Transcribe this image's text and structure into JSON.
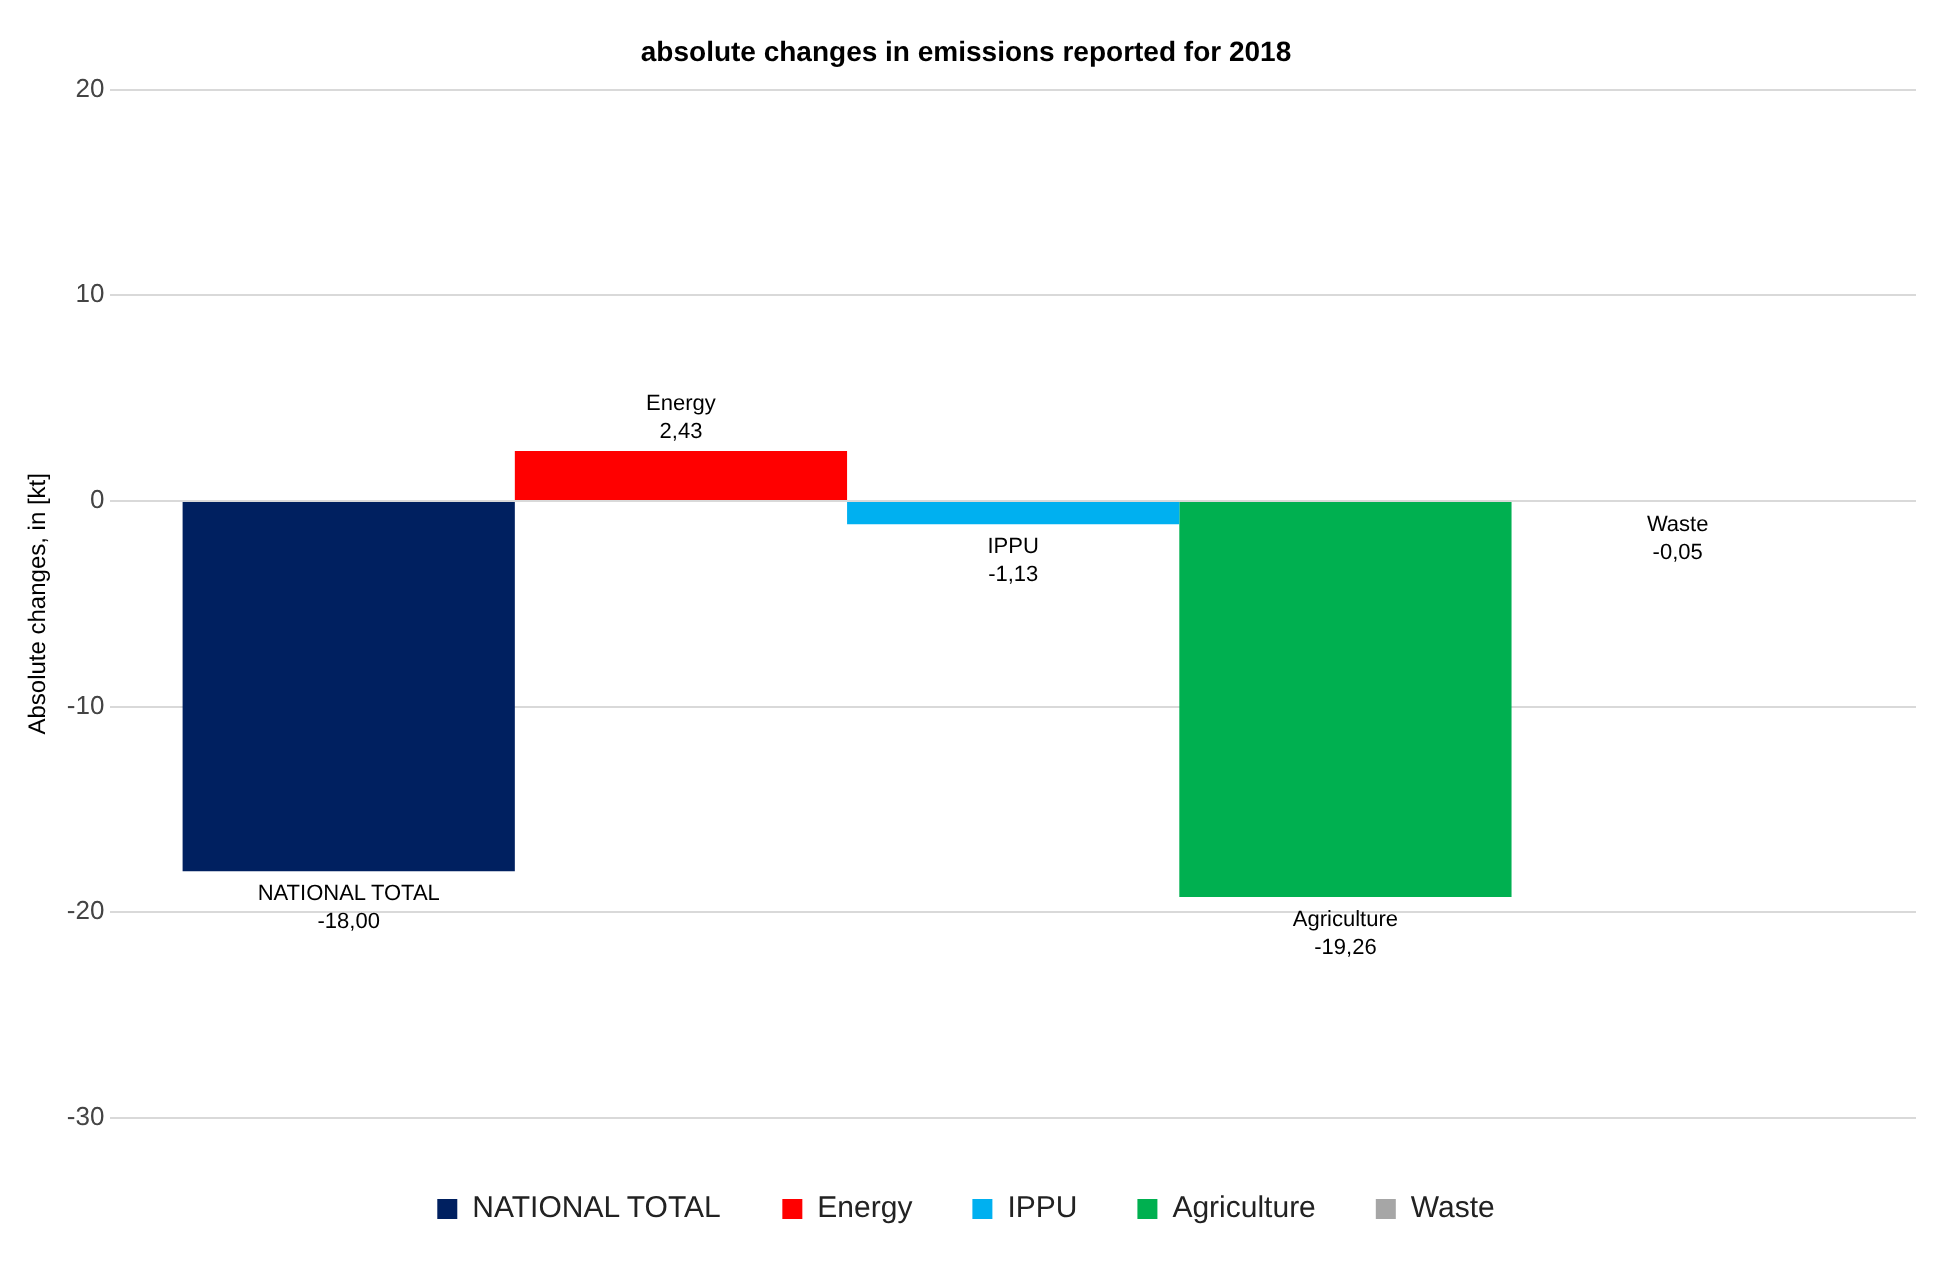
{
  "chart_data": {
    "type": "bar",
    "title": "absolute changes in emissions reported for 2018",
    "ylabel": "Absolute changes, in [kt]",
    "categories": [
      null
    ],
    "series": [
      {
        "name": "NATIONAL TOTAL",
        "color": "#002060",
        "values": [
          -18.0
        ],
        "value_labels": [
          "-18,00"
        ]
      },
      {
        "name": "Energy",
        "color": "#ff0000",
        "values": [
          2.43
        ],
        "value_labels": [
          "2,43"
        ]
      },
      {
        "name": "IPPU",
        "color": "#00b0f0",
        "values": [
          -1.13
        ],
        "value_labels": [
          "-1,13"
        ]
      },
      {
        "name": "Agriculture",
        "color": "#00b050",
        "values": [
          -19.26
        ],
        "value_labels": [
          "-19,26"
        ]
      },
      {
        "name": "Waste",
        "color": "#a6a6a6",
        "values": [
          -0.05
        ],
        "value_labels": [
          "-0,05"
        ]
      }
    ],
    "ylim": [
      -30,
      20
    ],
    "yticks": [
      -30,
      -20,
      -10,
      0,
      10,
      20
    ],
    "grid": "y",
    "legend": "bottom"
  }
}
